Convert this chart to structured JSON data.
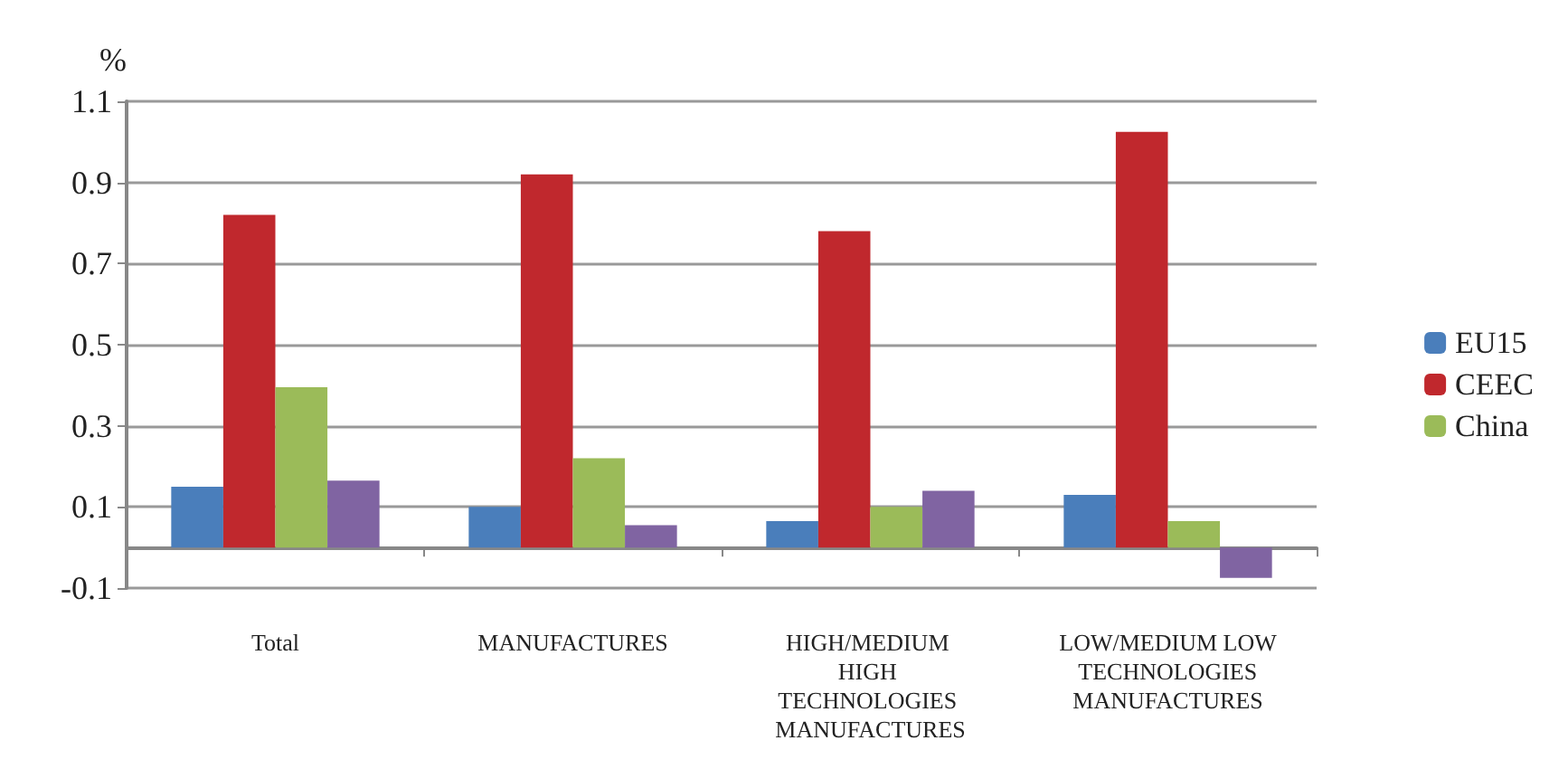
{
  "chart_data": {
    "type": "bar",
    "ylabel": "%",
    "categories": [
      "Total",
      "MANUFACTURES",
      "HIGH/MEDIUM HIGH TECHNOLOGIES MANUFACTURES",
      "LOW/MEDIUM LOW TECHNOLOGIES MANUFACTURES"
    ],
    "series": [
      {
        "name": "EU15",
        "color": "#4a7ebb",
        "values": [
          0.15,
          0.1,
          0.065,
          0.13
        ]
      },
      {
        "name": "CEEC",
        "color": "#c0282d",
        "values": [
          0.82,
          0.92,
          0.78,
          1.025
        ]
      },
      {
        "name": "China",
        "color": "#9bbb59",
        "values": [
          0.395,
          0.22,
          0.1,
          0.065
        ]
      },
      {
        "color": "#8064a2",
        "values": [
          0.165,
          0.055,
          0.14,
          -0.075
        ]
      }
    ],
    "ylim": [
      -0.1,
      1.1
    ],
    "yticks": [
      -0.1,
      0.1,
      0.3,
      0.5,
      0.7,
      0.9,
      1.1
    ],
    "grid": "y",
    "legend": "right"
  }
}
